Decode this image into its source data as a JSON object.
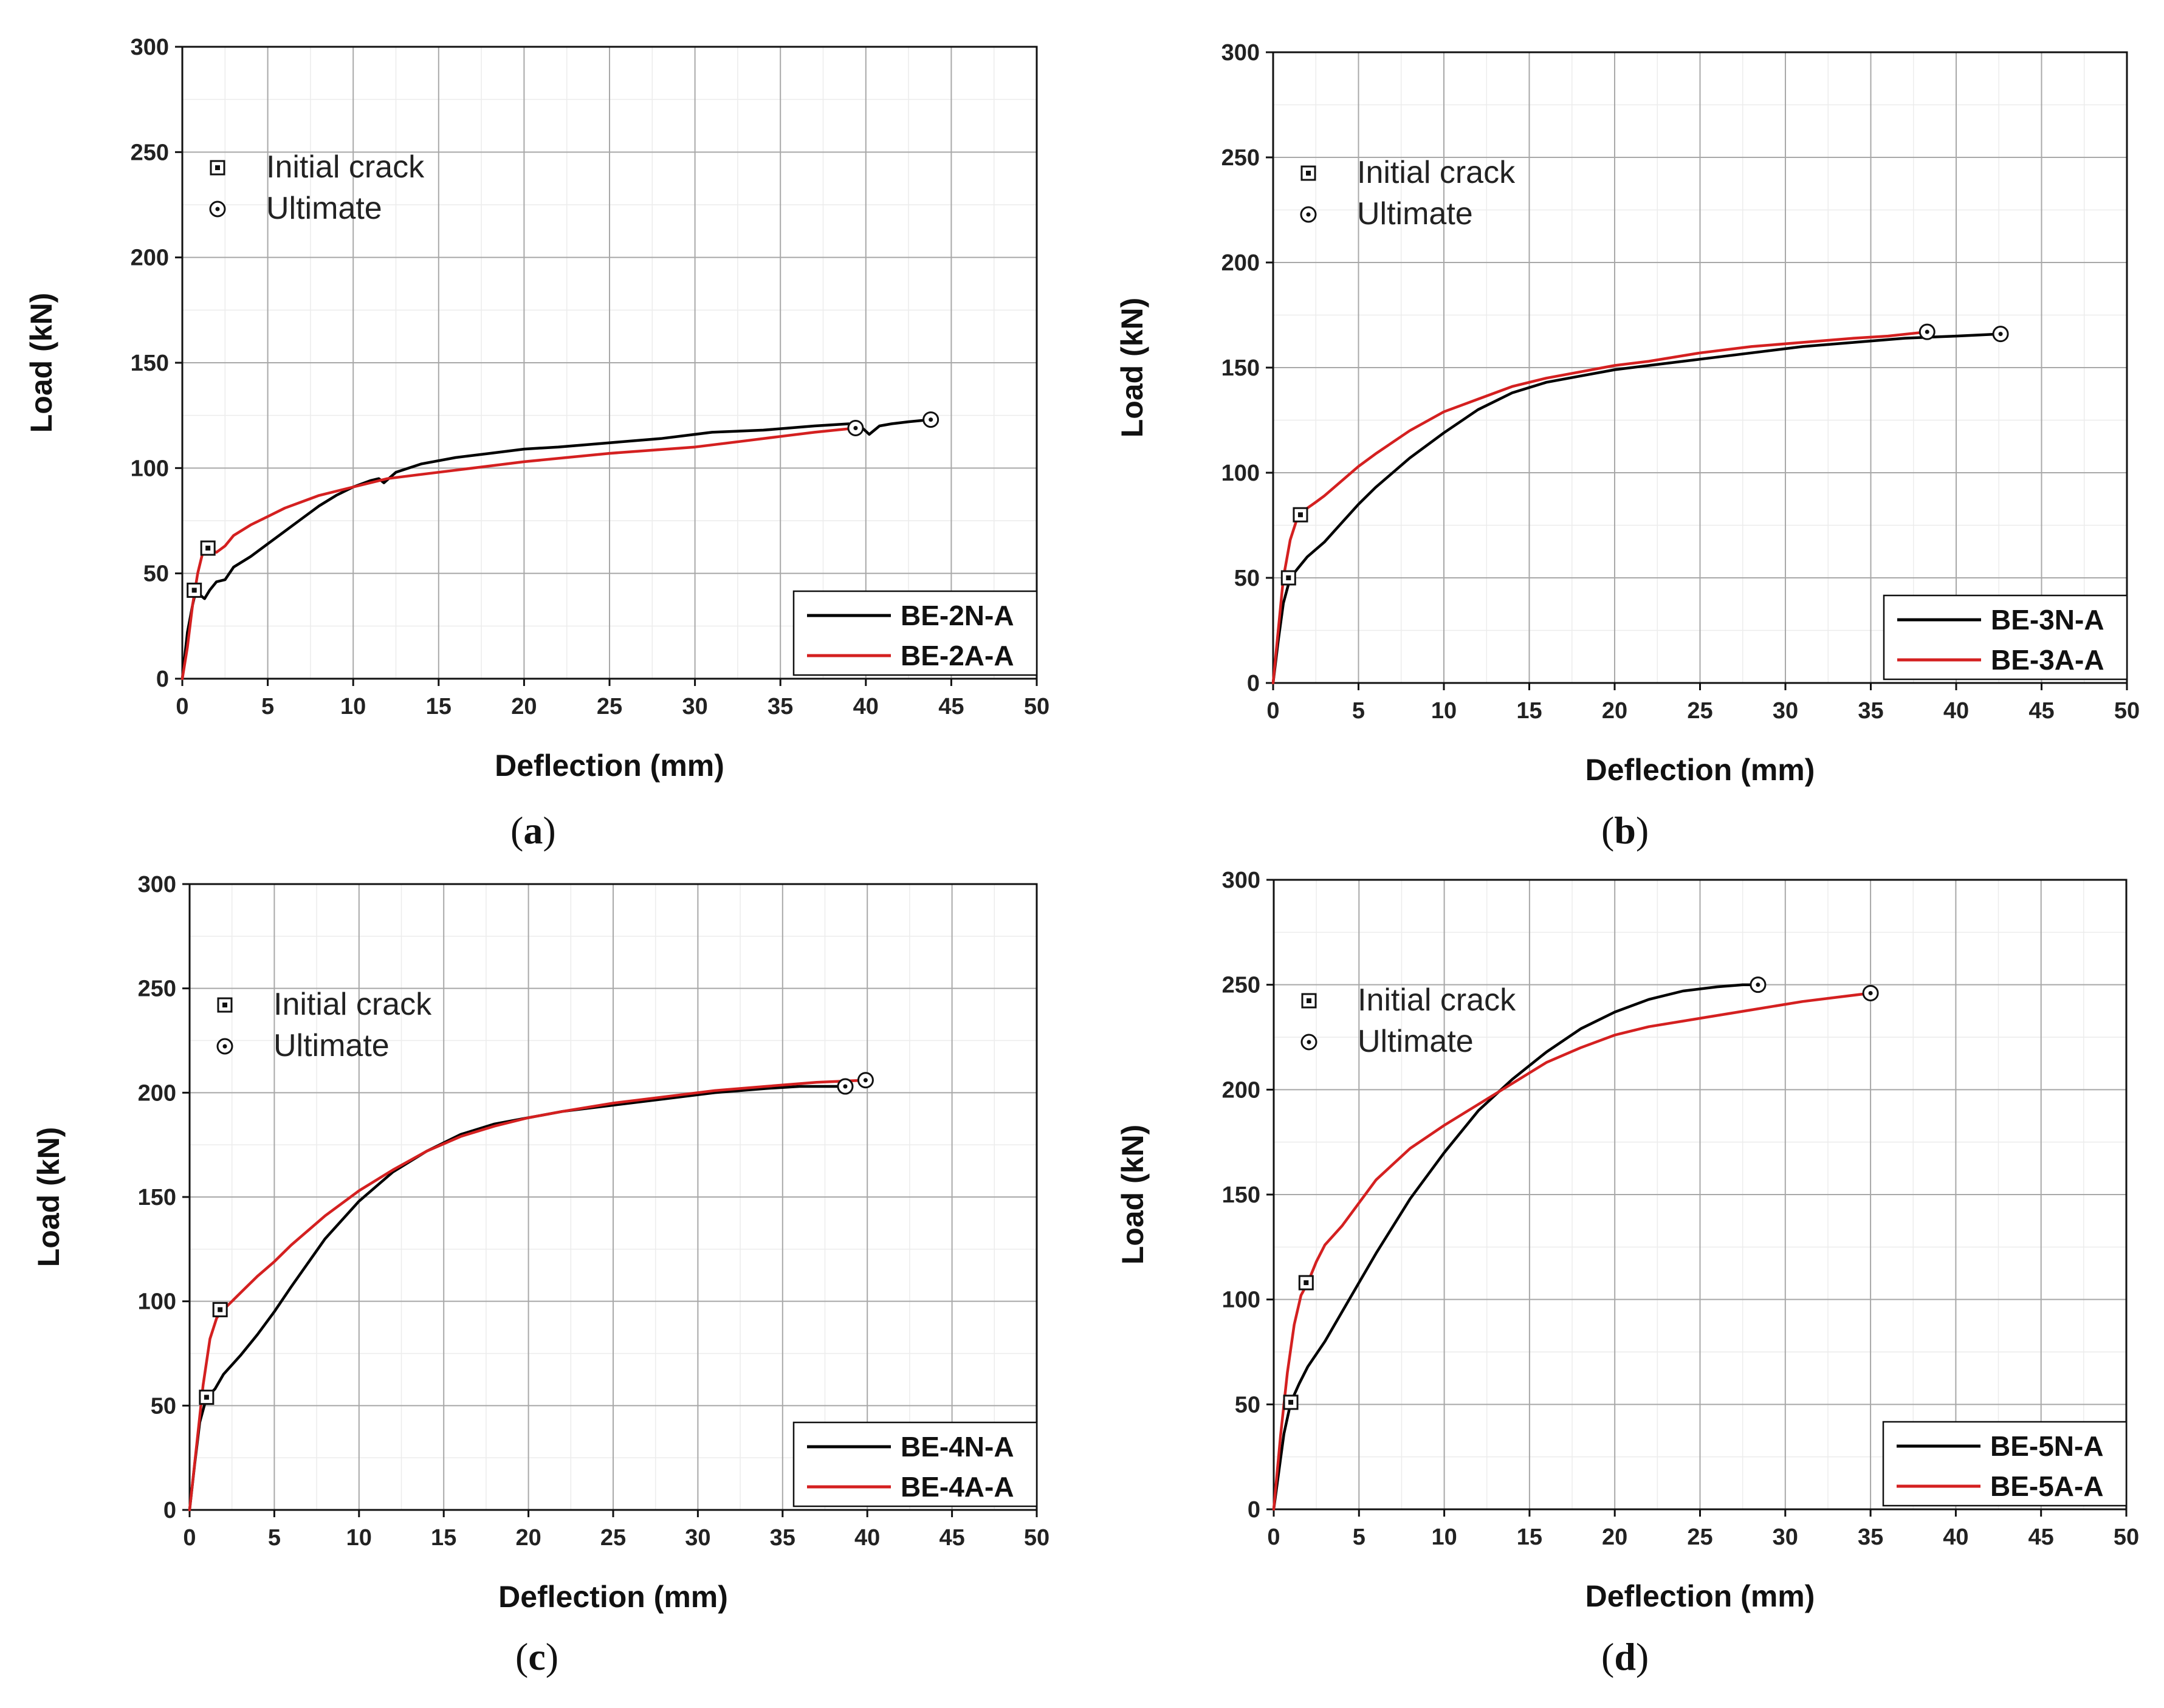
{
  "chart_data": [
    {
      "type": "line",
      "panel": "a",
      "caption_letter": "a",
      "xlabel": "Deflection (mm)",
      "ylabel": "Load (kN)",
      "xlim": [
        0,
        50
      ],
      "ylim": [
        0,
        300
      ],
      "xticks": [
        "0",
        "5",
        "10",
        "15",
        "20",
        "25",
        "30",
        "35",
        "40",
        "45",
        "50"
      ],
      "yticks": [
        "0",
        "50",
        "100",
        "150",
        "200",
        "250",
        "300"
      ],
      "grid": true,
      "marker_legend": {
        "crack_label": "Initial crack",
        "ultimate_label": "Ultimate",
        "placement": "upper-left"
      },
      "series_legend_placement": "bottom-right",
      "series": [
        {
          "name": "BE-2N-A",
          "color": "#000000",
          "x": [
            0,
            0.3,
            0.6,
            0.8,
            1.0,
            1.3,
            1.6,
            2.0,
            2.5,
            3.0,
            4.0,
            5.0,
            6.0,
            7.0,
            8.0,
            9.0,
            10.0,
            11.0,
            11.5,
            11.8,
            12.5,
            14.0,
            16.0,
            18.0,
            20.0,
            22.0,
            25.0,
            28.0,
            31.0,
            34.0,
            37.0,
            39.0,
            39.8,
            40.2,
            40.8,
            41.5,
            42.5,
            43.8
          ],
          "y": [
            0,
            22,
            35,
            42,
            40,
            38,
            42,
            46,
            47,
            53,
            58,
            64,
            70,
            76,
            82,
            87,
            91,
            94,
            95,
            93,
            98,
            102,
            105,
            107,
            109,
            110,
            112,
            114,
            117,
            118,
            120,
            121,
            119,
            116,
            120,
            121,
            122,
            123
          ]
        },
        {
          "name": "BE-2A-A",
          "color": "#d42020",
          "x": [
            0,
            0.3,
            0.6,
            0.9,
            1.2,
            1.5,
            2.0,
            2.5,
            3.0,
            4.0,
            5.0,
            6.0,
            8.0,
            10.0,
            12.0,
            14.0,
            16.0,
            20.0,
            25.0,
            30.0,
            33.0,
            35.0,
            37.0,
            39.4
          ],
          "y": [
            0,
            15,
            35,
            50,
            60,
            62,
            60,
            63,
            68,
            73,
            77,
            81,
            87,
            91,
            95,
            97,
            99,
            103,
            107,
            110,
            113,
            115,
            117,
            119
          ]
        }
      ],
      "crack_points": [
        {
          "x": 0.7,
          "y": 42
        },
        {
          "x": 1.5,
          "y": 62
        }
      ],
      "ultimate_points": [
        {
          "x": 39.4,
          "y": 119
        },
        {
          "x": 43.8,
          "y": 123
        }
      ]
    },
    {
      "type": "line",
      "panel": "b",
      "caption_letter": "b",
      "xlabel": "Deflection (mm)",
      "ylabel": "Load (kN)",
      "xlim": [
        0,
        50
      ],
      "ylim": [
        0,
        300
      ],
      "xticks": [
        "0",
        "5",
        "10",
        "15",
        "20",
        "25",
        "30",
        "35",
        "40",
        "45",
        "50"
      ],
      "yticks": [
        "0",
        "50",
        "100",
        "150",
        "200",
        "250",
        "300"
      ],
      "grid": true,
      "marker_legend": {
        "crack_label": "Initial crack",
        "ultimate_label": "Ultimate",
        "placement": "upper-left"
      },
      "series_legend_placement": "bottom-right",
      "series": [
        {
          "name": "BE-3N-A",
          "color": "#000000",
          "x": [
            0,
            0.3,
            0.6,
            1.0,
            1.5,
            2.0,
            3.0,
            4.0,
            5.0,
            6.0,
            8.0,
            10.0,
            12.0,
            14.0,
            16.0,
            18.0,
            20.0,
            22.0,
            25.0,
            28.0,
            31.0,
            34.0,
            37.0,
            40.0,
            42.6
          ],
          "y": [
            0,
            20,
            38,
            50,
            55,
            60,
            67,
            76,
            85,
            93,
            107,
            119,
            130,
            138,
            143,
            146,
            149,
            151,
            154,
            157,
            160,
            162,
            164,
            165,
            166
          ]
        },
        {
          "name": "BE-3A-A",
          "color": "#d42020",
          "x": [
            0,
            0.3,
            0.6,
            1.0,
            1.4,
            1.8,
            2.5,
            3.0,
            4.0,
            5.0,
            6.0,
            8.0,
            10.0,
            12.0,
            14.0,
            16.0,
            18.0,
            20.0,
            22.0,
            25.0,
            28.0,
            31.0,
            34.0,
            36.0,
            38.3
          ],
          "y": [
            0,
            25,
            50,
            68,
            78,
            82,
            86,
            89,
            96,
            103,
            109,
            120,
            129,
            135,
            141,
            145,
            148,
            151,
            153,
            157,
            160,
            162,
            164,
            165,
            167
          ]
        }
      ],
      "crack_points": [
        {
          "x": 0.9,
          "y": 50
        },
        {
          "x": 1.6,
          "y": 80
        }
      ],
      "ultimate_points": [
        {
          "x": 38.3,
          "y": 167
        },
        {
          "x": 42.6,
          "y": 166
        }
      ]
    },
    {
      "type": "line",
      "panel": "c",
      "caption_letter": "c",
      "xlabel": "Deflection (mm)",
      "ylabel": "Load (kN)",
      "xlim": [
        0,
        50
      ],
      "ylim": [
        0,
        300
      ],
      "xticks": [
        "0",
        "5",
        "10",
        "15",
        "20",
        "25",
        "30",
        "35",
        "40",
        "45",
        "50"
      ],
      "yticks": [
        "0",
        "50",
        "100",
        "150",
        "200",
        "250",
        "300"
      ],
      "grid": true,
      "marker_legend": {
        "crack_label": "Initial crack",
        "ultimate_label": "Ultimate",
        "placement": "upper-left"
      },
      "series_legend_placement": "bottom-right",
      "series": [
        {
          "name": "BE-4N-A",
          "color": "#000000",
          "x": [
            0,
            0.3,
            0.6,
            1.0,
            1.5,
            2.0,
            3.0,
            4.0,
            5.0,
            6.0,
            8.0,
            10.0,
            12.0,
            14.0,
            16.0,
            18.0,
            20.0,
            22.0,
            25.0,
            28.0,
            31.0,
            34.0,
            36.0,
            38.7
          ],
          "y": [
            0,
            22,
            42,
            54,
            58,
            65,
            74,
            84,
            95,
            107,
            130,
            148,
            162,
            172,
            180,
            185,
            188,
            191,
            194,
            197,
            200,
            202,
            203,
            203
          ]
        },
        {
          "name": "BE-4A-A",
          "color": "#d42020",
          "x": [
            0,
            0.4,
            0.8,
            1.2,
            1.6,
            2.0,
            3.0,
            4.0,
            5.0,
            6.0,
            8.0,
            10.0,
            12.0,
            14.0,
            16.0,
            18.0,
            20.0,
            22.0,
            25.0,
            28.0,
            31.0,
            34.0,
            37.0,
            39.9
          ],
          "y": [
            0,
            30,
            60,
            82,
            92,
            96,
            104,
            112,
            119,
            127,
            141,
            153,
            163,
            172,
            179,
            184,
            188,
            191,
            195,
            198,
            201,
            203,
            205,
            206
          ]
        }
      ],
      "crack_points": [
        {
          "x": 1.0,
          "y": 54
        },
        {
          "x": 1.8,
          "y": 96
        }
      ],
      "ultimate_points": [
        {
          "x": 38.7,
          "y": 203
        },
        {
          "x": 39.9,
          "y": 206
        }
      ]
    },
    {
      "type": "line",
      "panel": "d",
      "caption_letter": "d",
      "xlabel": "Deflection (mm)",
      "ylabel": "Load (kN)",
      "xlim": [
        0,
        50
      ],
      "ylim": [
        0,
        300
      ],
      "xticks": [
        "0",
        "5",
        "10",
        "15",
        "20",
        "25",
        "30",
        "35",
        "40",
        "45",
        "50"
      ],
      "yticks": [
        "0",
        "50",
        "100",
        "150",
        "200",
        "250",
        "300"
      ],
      "grid": true,
      "marker_legend": {
        "crack_label": "Initial crack",
        "ultimate_label": "Ultimate",
        "placement": "upper-left"
      },
      "series_legend_placement": "bottom-right",
      "series": [
        {
          "name": "BE-5N-A",
          "color": "#000000",
          "x": [
            0,
            0.3,
            0.6,
            1.0,
            1.5,
            2.0,
            3.0,
            4.0,
            5.0,
            6.0,
            8.0,
            10.0,
            12.0,
            14.0,
            16.0,
            18.0,
            20.0,
            22.0,
            24.0,
            26.0,
            27.5,
            28.4
          ],
          "y": [
            0,
            18,
            36,
            51,
            60,
            68,
            80,
            94,
            108,
            122,
            148,
            170,
            190,
            205,
            218,
            229,
            237,
            243,
            247,
            249,
            250,
            250
          ]
        },
        {
          "name": "BE-5A-A",
          "color": "#d42020",
          "x": [
            0,
            0.4,
            0.8,
            1.2,
            1.6,
            2.0,
            2.5,
            3.0,
            4.0,
            5.0,
            6.0,
            8.0,
            10.0,
            12.0,
            14.0,
            16.0,
            18.0,
            20.0,
            22.0,
            25.0,
            28.0,
            31.0,
            33.0,
            35.0
          ],
          "y": [
            0,
            35,
            65,
            88,
            102,
            108,
            118,
            126,
            135,
            146,
            157,
            172,
            183,
            193,
            203,
            213,
            220,
            226,
            230,
            234,
            238,
            242,
            244,
            246
          ]
        }
      ],
      "crack_points": [
        {
          "x": 1.0,
          "y": 51
        },
        {
          "x": 1.9,
          "y": 108
        }
      ],
      "ultimate_points": [
        {
          "x": 28.4,
          "y": 250
        },
        {
          "x": 35.0,
          "y": 246
        }
      ]
    }
  ]
}
